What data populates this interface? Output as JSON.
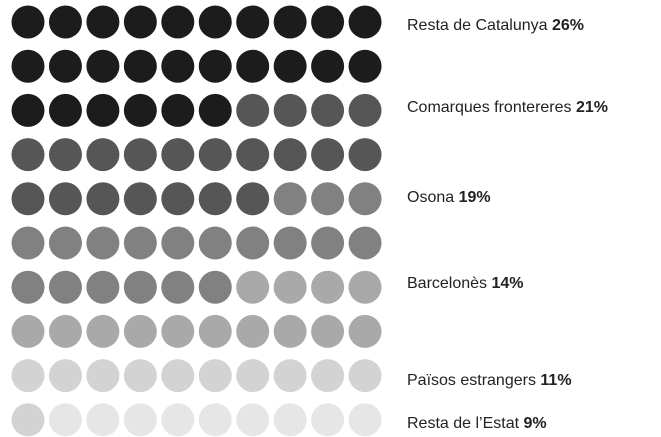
{
  "chart_data": {
    "type": "waffle",
    "categories": [
      "Resta de Catalunya",
      "Comarques frontereres",
      "Osona",
      "Barcelonès",
      "Països estrangers",
      "Resta de l’Estat"
    ],
    "values": [
      26,
      21,
      19,
      14,
      11,
      9
    ],
    "value_labels": [
      "26%",
      "21%",
      "19%",
      "14%",
      "11%",
      "9%"
    ],
    "colors": [
      "#1c1c1c",
      "#565656",
      "#818181",
      "#a9a9a9",
      "#d3d3d3",
      "#e6e6e6"
    ]
  }
}
